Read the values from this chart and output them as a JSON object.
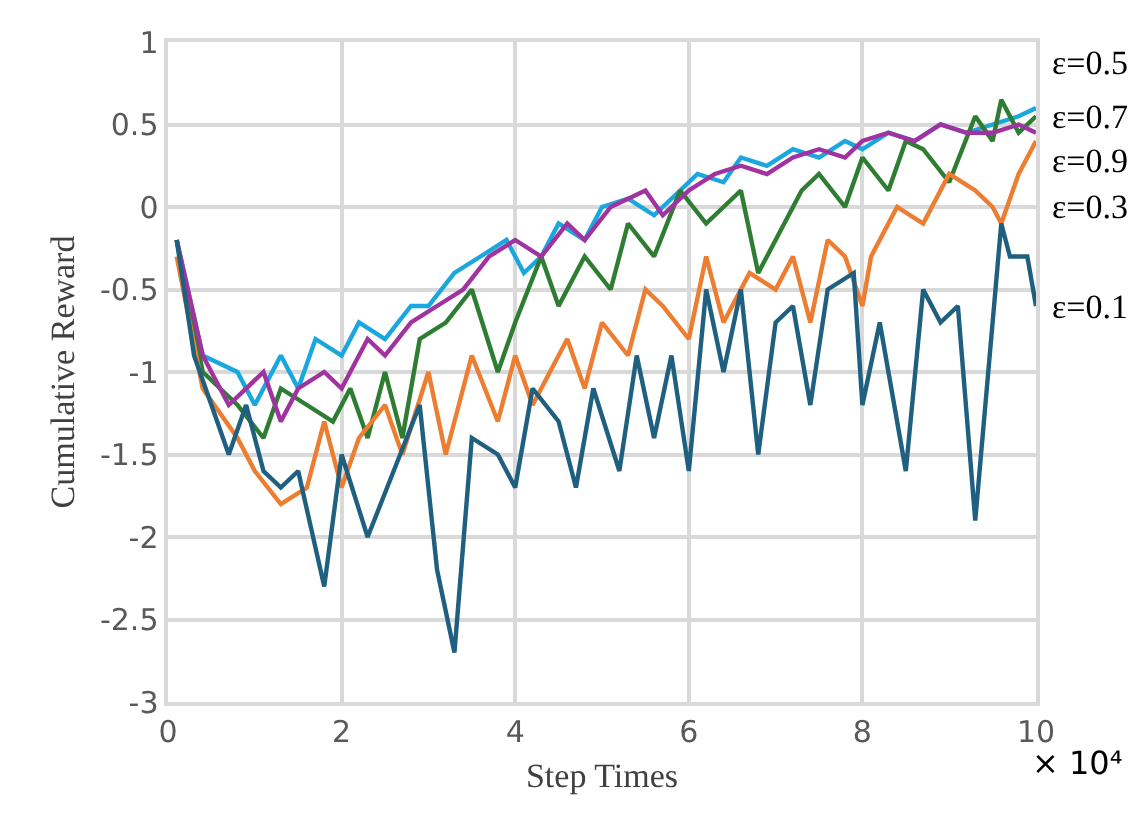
{
  "chart_data": {
    "type": "line",
    "xlabel": "Step Times",
    "ylabel": "Cumulative Reward",
    "annotations": [
      "× 10⁴"
    ],
    "xlim": [
      0,
      10
    ],
    "xticks": [
      0,
      2,
      4,
      6,
      8,
      10
    ],
    "ylim": [
      -3,
      1
    ],
    "yticks": [
      -3,
      -2.5,
      -2,
      -1.5,
      -1,
      -0.5,
      0,
      0.5,
      1
    ],
    "grid": true,
    "legend": false,
    "marker": "none",
    "line_style": "solid",
    "series": [
      {
        "name": "ε=0.5",
        "color": "#1aa7e0",
        "x": [
          0.1,
          0.4,
          0.8,
          1.0,
          1.3,
          1.5,
          1.7,
          2.0,
          2.2,
          2.5,
          2.8,
          3.0,
          3.3,
          3.6,
          3.9,
          4.1,
          4.3,
          4.5,
          4.8,
          5.0,
          5.3,
          5.6,
          5.9,
          6.1,
          6.4,
          6.6,
          6.9,
          7.2,
          7.5,
          7.8,
          8.0,
          8.3,
          8.6,
          8.9,
          9.2,
          9.5,
          9.8,
          10.0
        ],
        "values": [
          -0.2,
          -0.9,
          -1.0,
          -1.2,
          -0.9,
          -1.1,
          -0.8,
          -0.9,
          -0.7,
          -0.8,
          -0.6,
          -0.6,
          -0.4,
          -0.3,
          -0.2,
          -0.4,
          -0.3,
          -0.1,
          -0.2,
          0.0,
          0.05,
          -0.05,
          0.1,
          0.2,
          0.15,
          0.3,
          0.25,
          0.35,
          0.3,
          0.4,
          0.35,
          0.45,
          0.4,
          0.5,
          0.45,
          0.5,
          0.55,
          0.6
        ]
      },
      {
        "name": "ε=0.7",
        "color": "#2e7d32",
        "x": [
          0.1,
          0.4,
          0.8,
          1.1,
          1.3,
          1.6,
          1.9,
          2.1,
          2.3,
          2.5,
          2.7,
          2.9,
          3.2,
          3.5,
          3.8,
          4.0,
          4.3,
          4.5,
          4.8,
          5.1,
          5.3,
          5.6,
          5.9,
          6.2,
          6.4,
          6.6,
          6.8,
          7.0,
          7.3,
          7.5,
          7.8,
          8.0,
          8.3,
          8.5,
          8.7,
          9.0,
          9.3,
          9.5,
          9.6,
          9.8,
          10.0
        ],
        "values": [
          -0.2,
          -1.0,
          -1.2,
          -1.4,
          -1.1,
          -1.2,
          -1.3,
          -1.1,
          -1.4,
          -1.0,
          -1.4,
          -0.8,
          -0.7,
          -0.5,
          -1.0,
          -0.7,
          -0.3,
          -0.6,
          -0.3,
          -0.5,
          -0.1,
          -0.3,
          0.1,
          -0.1,
          0.0,
          0.1,
          -0.4,
          -0.2,
          0.1,
          0.2,
          0.0,
          0.3,
          0.1,
          0.4,
          0.35,
          0.15,
          0.55,
          0.4,
          0.65,
          0.45,
          0.55
        ]
      },
      {
        "name": "ε=0.9",
        "color": "#a033a0",
        "x": [
          0.1,
          0.4,
          0.7,
          1.1,
          1.3,
          1.5,
          1.8,
          2.0,
          2.3,
          2.5,
          2.8,
          3.1,
          3.4,
          3.7,
          4.0,
          4.3,
          4.6,
          4.8,
          5.1,
          5.5,
          5.7,
          6.0,
          6.3,
          6.6,
          6.9,
          7.2,
          7.5,
          7.8,
          8.0,
          8.3,
          8.6,
          8.9,
          9.2,
          9.5,
          9.8,
          10.0
        ],
        "values": [
          -0.2,
          -0.9,
          -1.2,
          -1.0,
          -1.3,
          -1.1,
          -1.0,
          -1.1,
          -0.8,
          -0.9,
          -0.7,
          -0.6,
          -0.5,
          -0.3,
          -0.2,
          -0.3,
          -0.1,
          -0.2,
          0.0,
          0.1,
          -0.05,
          0.1,
          0.2,
          0.25,
          0.2,
          0.3,
          0.35,
          0.3,
          0.4,
          0.45,
          0.4,
          0.5,
          0.45,
          0.45,
          0.5,
          0.45
        ]
      },
      {
        "name": "ε=0.3",
        "color": "#ed7d31",
        "x": [
          0.1,
          0.4,
          0.8,
          1.0,
          1.3,
          1.6,
          1.8,
          2.0,
          2.2,
          2.5,
          2.7,
          3.0,
          3.2,
          3.5,
          3.8,
          4.0,
          4.2,
          4.6,
          4.8,
          5.0,
          5.3,
          5.5,
          5.7,
          6.0,
          6.2,
          6.4,
          6.7,
          7.0,
          7.2,
          7.4,
          7.6,
          7.8,
          8.0,
          8.1,
          8.4,
          8.7,
          9.0,
          9.3,
          9.5,
          9.6,
          9.8,
          10.0
        ],
        "values": [
          -0.3,
          -1.1,
          -1.4,
          -1.6,
          -1.8,
          -1.7,
          -1.3,
          -1.7,
          -1.4,
          -1.2,
          -1.5,
          -1.0,
          -1.5,
          -0.9,
          -1.3,
          -0.9,
          -1.2,
          -0.8,
          -1.1,
          -0.7,
          -0.9,
          -0.5,
          -0.6,
          -0.8,
          -0.3,
          -0.7,
          -0.4,
          -0.5,
          -0.3,
          -0.7,
          -0.2,
          -0.3,
          -0.6,
          -0.3,
          0.0,
          -0.1,
          0.2,
          0.1,
          0.0,
          -0.1,
          0.2,
          0.4
        ]
      },
      {
        "name": "ε=0.1",
        "color": "#1f5f80",
        "x": [
          0.1,
          0.3,
          0.5,
          0.7,
          0.9,
          1.1,
          1.3,
          1.5,
          1.8,
          2.0,
          2.3,
          2.6,
          2.9,
          3.1,
          3.3,
          3.5,
          3.8,
          4.0,
          4.2,
          4.5,
          4.7,
          4.9,
          5.2,
          5.4,
          5.6,
          5.8,
          6.0,
          6.2,
          6.4,
          6.6,
          6.8,
          7.0,
          7.2,
          7.4,
          7.6,
          7.9,
          8.0,
          8.2,
          8.5,
          8.7,
          8.9,
          9.1,
          9.3,
          9.6,
          9.7,
          9.9,
          10.0
        ],
        "values": [
          -0.2,
          -0.9,
          -1.2,
          -1.5,
          -1.2,
          -1.6,
          -1.7,
          -1.6,
          -2.3,
          -1.5,
          -2.0,
          -1.6,
          -1.2,
          -2.2,
          -2.7,
          -1.4,
          -1.5,
          -1.7,
          -1.1,
          -1.3,
          -1.7,
          -1.1,
          -1.6,
          -0.9,
          -1.4,
          -0.9,
          -1.6,
          -0.5,
          -1.0,
          -0.5,
          -1.5,
          -0.7,
          -0.6,
          -1.2,
          -0.5,
          -0.4,
          -1.2,
          -0.7,
          -1.6,
          -0.5,
          -0.7,
          -0.6,
          -1.9,
          -0.1,
          -0.3,
          -0.3,
          -0.6
        ]
      }
    ]
  }
}
